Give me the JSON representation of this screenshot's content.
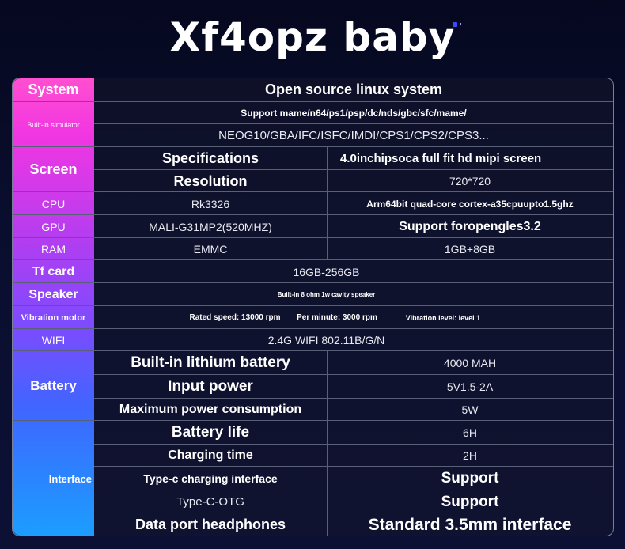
{
  "title": "Xf4opz baby",
  "rows": {
    "system": {
      "label": "System",
      "value": "Open source linux system"
    },
    "builtin": {
      "label": "Built-in simulator",
      "support": "Support mame/n64/ps1/psp/dc/nds/gbc/sfc/mame/",
      "list": "NEOG10/GBA/IFC/ISFC/IMDI/CPS1/CPS2/CPS3..."
    },
    "screen": {
      "label": "Screen",
      "spec_label": "Specifications",
      "spec_value": "4.0inchipsoca full fit hd mipi screen",
      "res_label": "Resolution",
      "res_value": "720*720"
    },
    "cpu": {
      "label": "CPU",
      "model": "Rk3326",
      "detail": "Arm64bit quad-core cortex-a35cpuupto1.5ghz"
    },
    "gpu": {
      "label": "GPU",
      "model": "MALI-G31MP2(520MHZ)",
      "detail": "Support foropengles3.2"
    },
    "ram": {
      "label": "RAM",
      "model": "EMMC",
      "detail": "1GB+8GB"
    },
    "tf": {
      "label": "Tf card",
      "value": "16GB-256GB"
    },
    "speaker": {
      "label": "Speaker",
      "value": "Built-in 8 ohm 1w cavity speaker"
    },
    "vibration": {
      "label": "Vibration motor",
      "speed": "Rated speed: 13000 rpm",
      "per_minute": "Per minute: 3000 rpm",
      "level": "Vibration level: level 1"
    },
    "wifi": {
      "label": "WIFI",
      "value": "2.4G WIFI 802.11B/G/N"
    },
    "battery": {
      "label": "Battery",
      "builtin_label": "Built-in lithium battery",
      "builtin_value": "4000 MAH",
      "input_label": "Input power",
      "input_value": "5V1.5-2A",
      "max_label": "Maximum power consumption",
      "max_value": "5W"
    },
    "interface": {
      "label": "Interface",
      "life_label": "Battery life",
      "life_value": "6H",
      "charge_label": "Charging time",
      "charge_value": "2H",
      "typec_label": "Type-c charging interface",
      "typec_value": "Support",
      "otg_label": "Type-C-OTG",
      "otg_value": "Support",
      "headphones_label": "Data port headphones",
      "headphones_value": "Standard 3.5mm interface"
    }
  }
}
